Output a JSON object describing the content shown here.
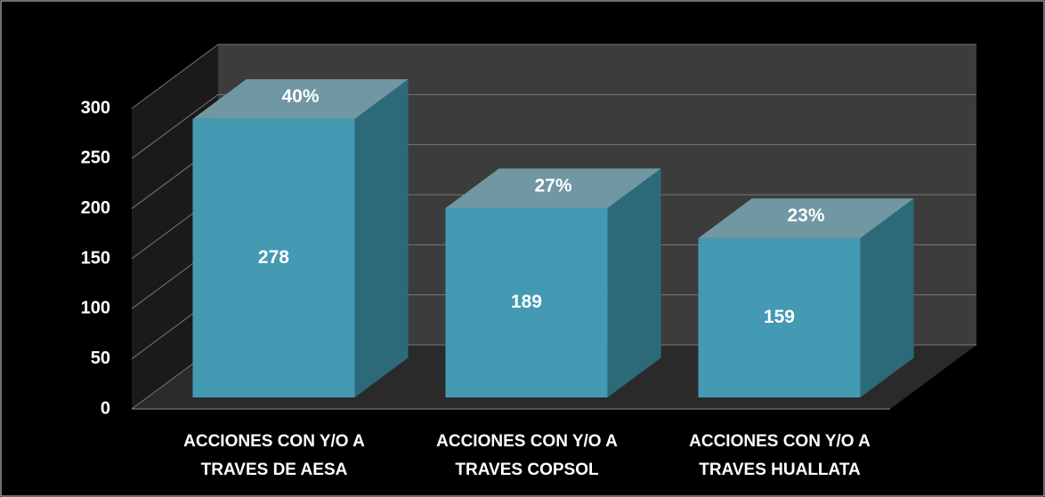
{
  "chart_data": {
    "type": "bar3d",
    "categories": [
      [
        "ACCIONES CON Y/O A",
        "TRAVES DE  AESA"
      ],
      [
        "ACCIONES CON Y/O A",
        "TRAVES COPSOL"
      ],
      [
        "ACCIONES CON  Y/O A",
        "TRAVES HUALLATA"
      ]
    ],
    "values": [
      278,
      189,
      159
    ],
    "annotations": [
      "40%",
      "27%",
      "23%"
    ],
    "color": "#4499b3",
    "ylim": [
      0,
      300
    ],
    "yticks": [
      0,
      50,
      100,
      150,
      200,
      250,
      300
    ],
    "grid": true
  }
}
